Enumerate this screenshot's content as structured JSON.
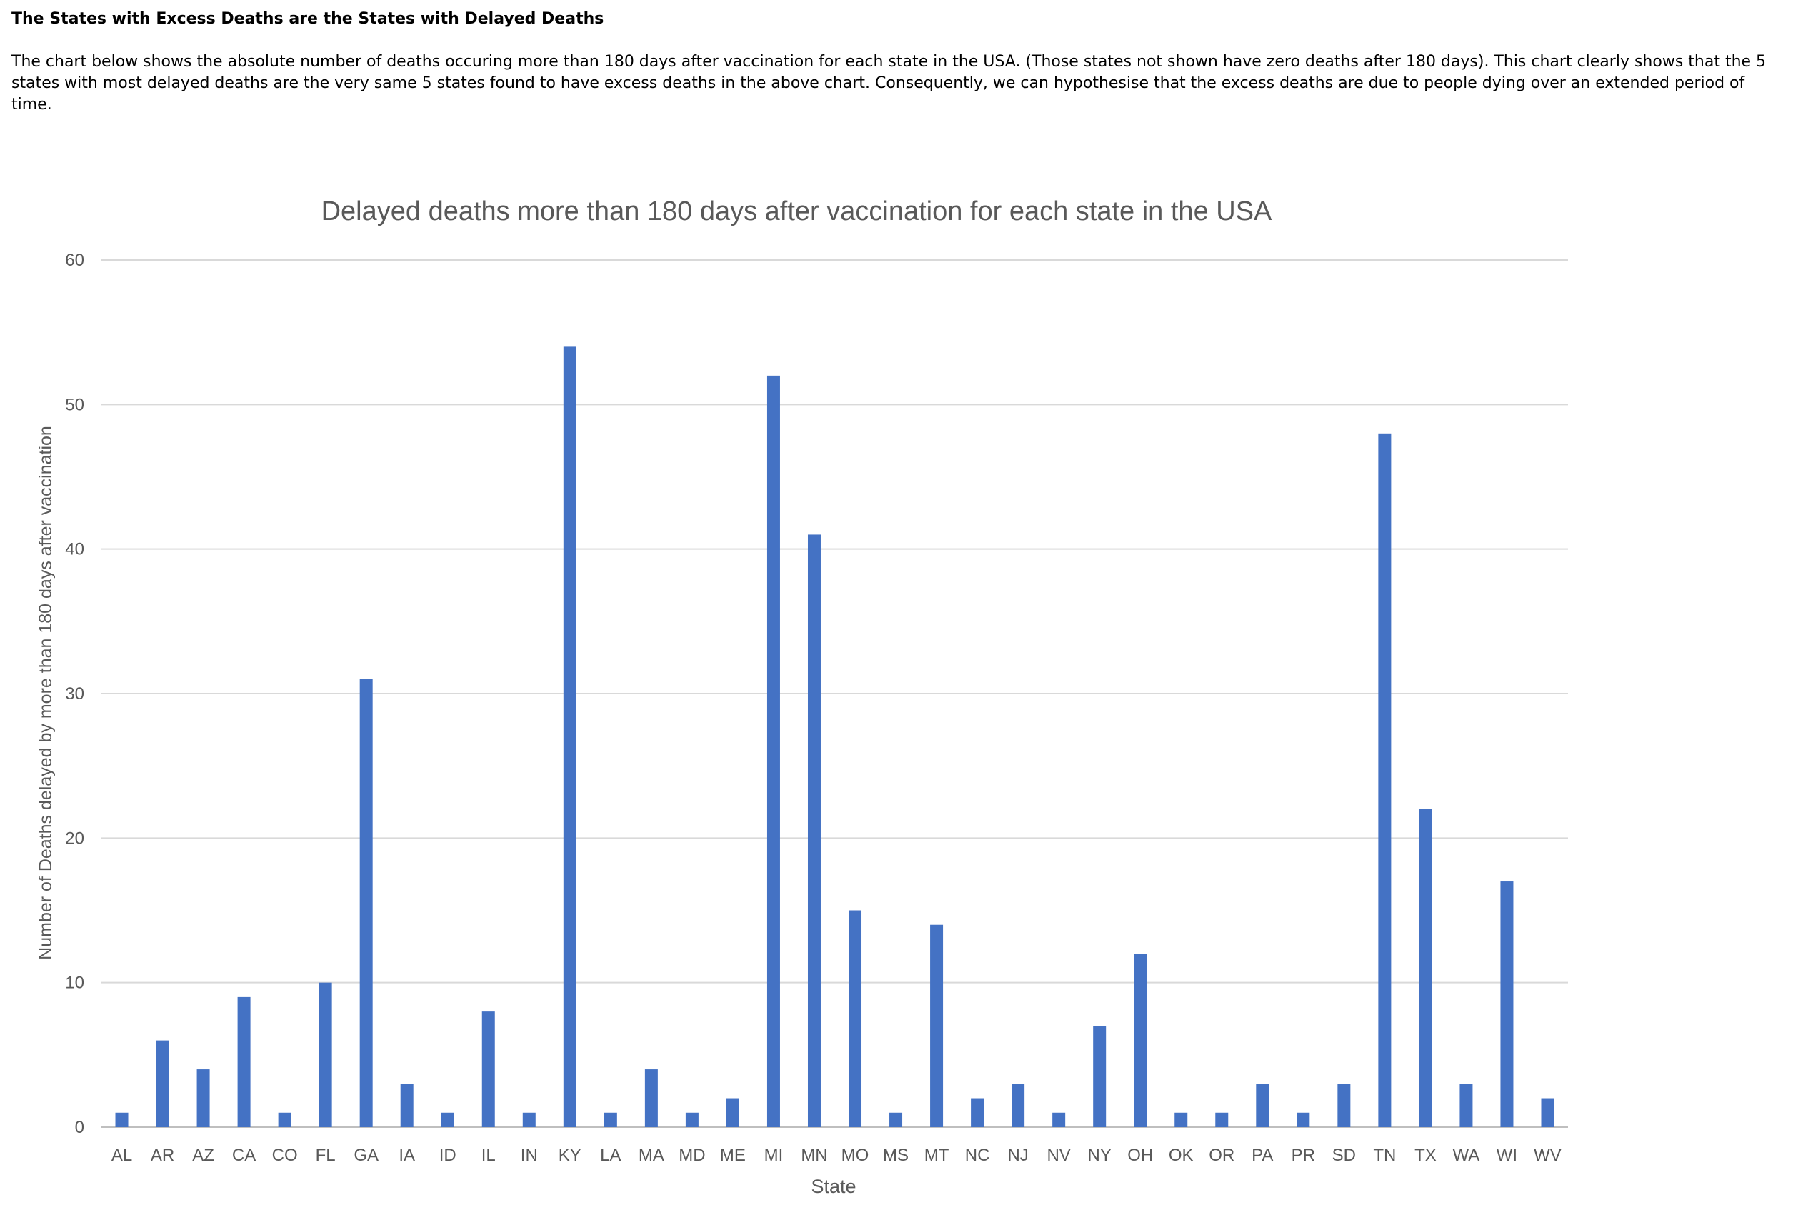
{
  "article": {
    "heading": "The States with Excess Deaths are the States with Delayed Deaths",
    "paragraph": "The chart below shows the absolute number of deaths occuring more than 180 days after vaccination for each state in the USA. (Those states not shown have zero deaths after 180 days). This chart clearly shows that the 5 states with most delayed deaths are the very same 5 states found to have excess deaths in the above chart. Consequently, we can hypothesise that the excess deaths are due to people dying over an extended period of time."
  },
  "chart_data": {
    "type": "bar",
    "title": "Delayed deaths more than 180 days after vaccination for each state in the USA",
    "xlabel": "State",
    "ylabel": "Number of Deaths delayed by more than 180 days after vaccination",
    "ylim": [
      0,
      60
    ],
    "yticks": [
      0,
      10,
      20,
      30,
      40,
      50,
      60
    ],
    "grid": true,
    "legend": "none",
    "bar_color": "#4472C4",
    "categories": [
      "AL",
      "AR",
      "AZ",
      "CA",
      "CO",
      "FL",
      "GA",
      "IA",
      "ID",
      "IL",
      "IN",
      "KY",
      "LA",
      "MA",
      "MD",
      "ME",
      "MI",
      "MN",
      "MO",
      "MS",
      "MT",
      "NC",
      "NJ",
      "NV",
      "NY",
      "OH",
      "OK",
      "OR",
      "PA",
      "PR",
      "SD",
      "TN",
      "TX",
      "WA",
      "WI",
      "WV"
    ],
    "values": [
      1,
      6,
      4,
      9,
      1,
      10,
      31,
      3,
      1,
      8,
      1,
      54,
      1,
      4,
      1,
      2,
      52,
      41,
      15,
      1,
      14,
      2,
      3,
      1,
      7,
      12,
      1,
      1,
      3,
      1,
      3,
      48,
      22,
      3,
      17,
      2
    ]
  }
}
